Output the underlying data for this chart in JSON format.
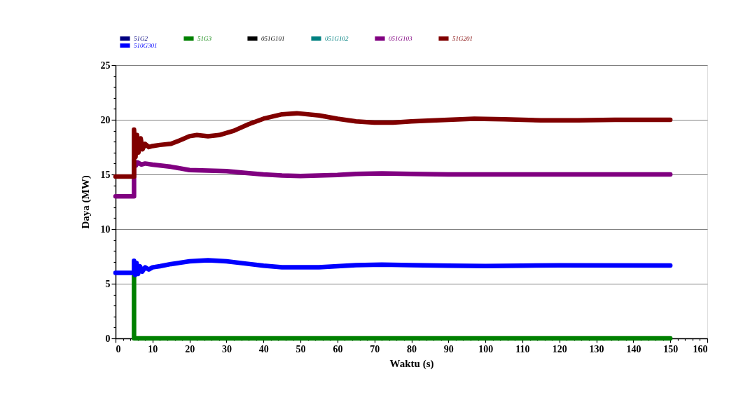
{
  "chart_data": {
    "type": "line",
    "xlabel": "Waktu (s)",
    "ylabel": "Daya (MW)",
    "xlim": [
      0,
      160
    ],
    "ylim": [
      0,
      25
    ],
    "xticks": [
      0,
      {
        "value": 2,
        "label": null
      },
      {
        "value": 4,
        "label": null
      },
      {
        "value": 6,
        "label": null
      },
      {
        "value": 8,
        "label": null
      },
      10,
      {
        "value": 12,
        "label": null
      },
      {
        "value": 14,
        "label": null
      },
      {
        "value": 16,
        "label": null
      },
      {
        "value": 18,
        "label": null
      },
      20,
      {
        "value": 22,
        "label": null
      },
      {
        "value": 24,
        "label": null
      },
      {
        "value": 26,
        "label": null
      },
      {
        "value": 28,
        "label": null
      },
      30,
      {
        "value": 32,
        "label": null
      },
      {
        "value": 34,
        "label": null
      },
      {
        "value": 36,
        "label": null
      },
      {
        "value": 38,
        "label": null
      },
      40,
      {
        "value": 42,
        "label": null
      },
      {
        "value": 44,
        "label": null
      },
      {
        "value": 46,
        "label": null
      },
      {
        "value": 48,
        "label": null
      },
      50,
      {
        "value": 52,
        "label": null
      },
      {
        "value": 54,
        "label": null
      },
      {
        "value": 56,
        "label": null
      },
      {
        "value": 58,
        "label": null
      },
      60,
      {
        "value": 62,
        "label": null
      },
      {
        "value": 64,
        "label": null
      },
      {
        "value": 66,
        "label": null
      },
      {
        "value": 68,
        "label": null
      },
      70,
      {
        "value": 72,
        "label": null
      },
      {
        "value": 74,
        "label": null
      },
      {
        "value": 76,
        "label": null
      },
      {
        "value": 78,
        "label": null
      },
      80,
      {
        "value": 82,
        "label": null
      },
      {
        "value": 84,
        "label": null
      },
      {
        "value": 86,
        "label": null
      },
      {
        "value": 88,
        "label": null
      },
      90,
      {
        "value": 92,
        "label": null
      },
      {
        "value": 94,
        "label": null
      },
      {
        "value": 96,
        "label": null
      },
      {
        "value": 98,
        "label": null
      },
      100,
      {
        "value": 102,
        "label": null
      },
      {
        "value": 104,
        "label": null
      },
      {
        "value": 106,
        "label": null
      },
      {
        "value": 108,
        "label": null
      },
      110,
      {
        "value": 112,
        "label": null
      },
      {
        "value": 114,
        "label": null
      },
      {
        "value": 116,
        "label": null
      },
      {
        "value": 118,
        "label": null
      },
      120,
      {
        "value": 122,
        "label": null
      },
      {
        "value": 124,
        "label": null
      },
      {
        "value": 126,
        "label": null
      },
      {
        "value": 128,
        "label": null
      },
      130,
      {
        "value": 132,
        "label": null
      },
      {
        "value": 134,
        "label": null
      },
      {
        "value": 136,
        "label": null
      },
      {
        "value": 138,
        "label": null
      },
      140,
      {
        "value": 142,
        "label": null
      },
      {
        "value": 144,
        "label": null
      },
      {
        "value": 146,
        "label": null
      },
      {
        "value": 148,
        "label": null
      },
      150,
      {
        "value": 152,
        "label": null
      },
      {
        "value": 154,
        "label": null
      },
      {
        "value": 156,
        "label": null
      },
      {
        "value": 158,
        "label": null
      },
      160
    ],
    "yticks": [
      0,
      {
        "value": 1,
        "label": null
      },
      {
        "value": 2,
        "label": null
      },
      {
        "value": 3,
        "label": null
      },
      {
        "value": 4,
        "label": null
      },
      5,
      {
        "value": 6,
        "label": null
      },
      {
        "value": 7,
        "label": null
      },
      {
        "value": 8,
        "label": null
      },
      {
        "value": 9,
        "label": null
      },
      10,
      {
        "value": 11,
        "label": null
      },
      {
        "value": 12,
        "label": null
      },
      {
        "value": 13,
        "label": null
      },
      {
        "value": 14,
        "label": null
      },
      15,
      {
        "value": 16,
        "label": null
      },
      {
        "value": 17,
        "label": null
      },
      {
        "value": 18,
        "label": null
      },
      {
        "value": 19,
        "label": null
      },
      20,
      {
        "value": 21,
        "label": null
      },
      {
        "value": 22,
        "label": null
      },
      {
        "value": 23,
        "label": null
      },
      {
        "value": 24,
        "label": null
      },
      25
    ],
    "grid": "y",
    "legend": "top left",
    "series": [
      {
        "name": "51G2",
        "color": "#000080"
      },
      {
        "name": "51G3",
        "color": "#008000",
        "x": [
          5,
          5,
          80,
          150
        ],
        "values": [
          5.7,
          0,
          0,
          0
        ]
      },
      {
        "name": "051G101",
        "color": "#000000"
      },
      {
        "name": "051G102",
        "color": "#008080"
      },
      {
        "name": "051G103",
        "color": "#800080",
        "x": [
          0,
          5,
          5,
          5.5,
          6,
          7,
          8,
          10,
          15,
          20,
          25,
          30,
          35,
          40,
          45,
          50,
          55,
          60,
          65,
          72,
          80,
          90,
          100,
          120,
          150
        ],
        "values": [
          13.0,
          13.0,
          16.3,
          15.8,
          16.1,
          15.9,
          16.0,
          15.9,
          15.7,
          15.4,
          15.35,
          15.3,
          15.15,
          15.0,
          14.9,
          14.85,
          14.9,
          14.95,
          15.05,
          15.1,
          15.05,
          15.0,
          15.0,
          15.0,
          15.0
        ]
      },
      {
        "name": "51G201",
        "color": "#800000",
        "x": [
          0,
          5,
          5,
          5.4,
          5.8,
          6.2,
          6.8,
          7.3,
          8,
          9,
          10,
          12,
          15,
          18,
          20,
          22,
          25,
          28,
          32,
          36,
          40,
          45,
          49,
          55,
          60,
          65,
          70,
          75,
          80,
          90,
          97,
          105,
          115,
          125,
          135,
          150
        ],
        "values": [
          14.8,
          14.8,
          19.1,
          16.6,
          18.6,
          17.0,
          18.3,
          17.3,
          17.8,
          17.5,
          17.6,
          17.7,
          17.8,
          18.2,
          18.5,
          18.6,
          18.5,
          18.6,
          19.0,
          19.6,
          20.1,
          20.5,
          20.6,
          20.4,
          20.1,
          19.85,
          19.75,
          19.75,
          19.85,
          20.0,
          20.1,
          20.05,
          19.95,
          19.95,
          20.0,
          20.0
        ]
      },
      {
        "name": "510G301",
        "color": "#0000ff",
        "x": [
          0,
          5,
          5,
          5.3,
          5.7,
          6.1,
          6.6,
          7.2,
          8,
          9,
          10,
          12,
          15,
          20,
          25,
          30,
          35,
          40,
          45,
          50,
          55,
          60,
          65,
          72,
          80,
          90,
          100,
          110,
          120,
          150
        ],
        "values": [
          6.0,
          6.0,
          7.1,
          5.8,
          6.9,
          5.9,
          6.6,
          6.1,
          6.5,
          6.3,
          6.5,
          6.6,
          6.8,
          7.05,
          7.15,
          7.05,
          6.85,
          6.65,
          6.5,
          6.5,
          6.5,
          6.6,
          6.7,
          6.75,
          6.7,
          6.65,
          6.62,
          6.65,
          6.68,
          6.67
        ]
      }
    ]
  }
}
